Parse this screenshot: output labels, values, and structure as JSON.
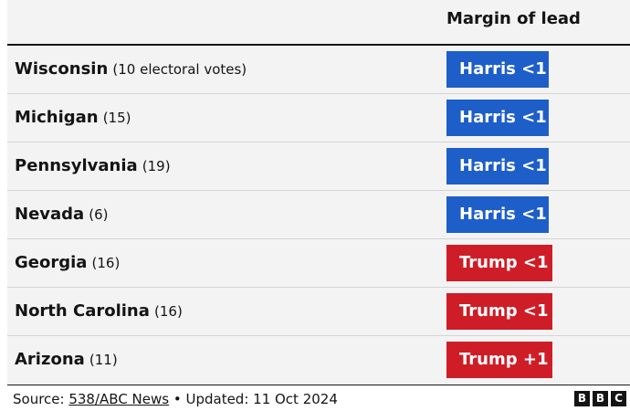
{
  "chart_data": {
    "type": "table",
    "column_header": "Margin of lead",
    "rows": [
      {
        "state": "Wisconsin",
        "votes": "(10 electoral votes)",
        "lead": "Harris <1",
        "party_color": "#1d5ec9"
      },
      {
        "state": "Michigan",
        "votes": "(15)",
        "lead": "Harris <1",
        "party_color": "#1d5ec9"
      },
      {
        "state": "Pennsylvania",
        "votes": "(19)",
        "lead": "Harris <1",
        "party_color": "#1d5ec9"
      },
      {
        "state": "Nevada",
        "votes": "(6)",
        "lead": "Harris <1",
        "party_color": "#1d5ec9"
      },
      {
        "state": "Georgia",
        "votes": "(16)",
        "lead": "Trump <1",
        "party_color": "#cf1d27"
      },
      {
        "state": "North Carolina",
        "votes": "(16)",
        "lead": "Trump <1",
        "party_color": "#cf1d27"
      },
      {
        "state": "Arizona",
        "votes": "(11)",
        "lead": "Trump +1",
        "party_color": "#cf1d27"
      }
    ]
  },
  "footer": {
    "source_prefix": "Source: ",
    "source_link": "538/ABC News",
    "updated": " • Updated: 11 Oct 2024"
  },
  "logo": {
    "letters": [
      "B",
      "B",
      "C"
    ]
  }
}
